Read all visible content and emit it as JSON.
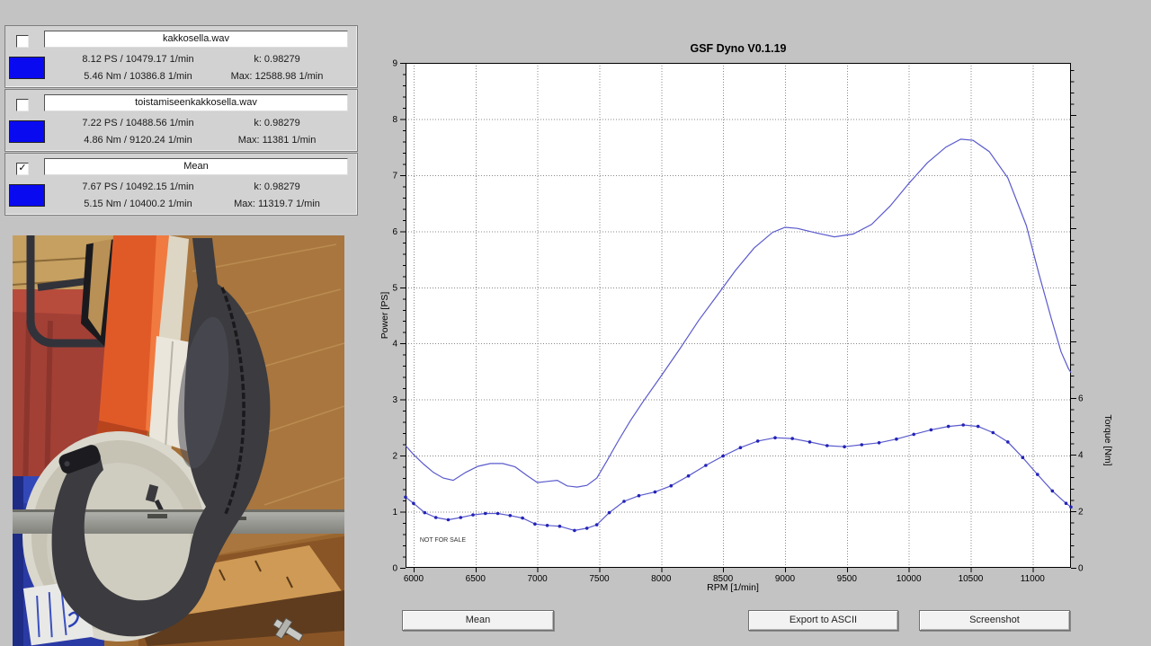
{
  "runs": [
    {
      "check": "",
      "checked": false,
      "color": "#0a0af0",
      "title": "kakkosella.wav",
      "line1_left": "8.12 PS / 10479.17 1/min",
      "line1_right": "k: 0.98279",
      "line2_left": "5.46 Nm / 10386.8 1/min",
      "line2_right": "Max: 12588.98 1/min"
    },
    {
      "check": "",
      "checked": false,
      "color": "#0a0af0",
      "title": "toistamiseenkakkosella.wav",
      "line1_left": "7.22 PS / 10488.56 1/min",
      "line1_right": "k: 0.98279",
      "line2_left": "4.86 Nm / 9120.24 1/min",
      "line2_right": "Max: 11381 1/min"
    },
    {
      "check": "✓",
      "checked": true,
      "color": "#0a0af0",
      "title": "Mean",
      "line1_left": "7.67 PS / 10492.15 1/min",
      "line1_right": "k: 0.98279",
      "line2_left": "5.15 Nm / 10400.2 1/min",
      "line2_right": "Max: 11319.7 1/min"
    }
  ],
  "buttons": [
    {
      "label": "Mean"
    },
    {
      "label": "Export to ASCII"
    },
    {
      "label": "Screenshot"
    }
  ],
  "chart_data": {
    "type": "line",
    "title": "GSF Dyno V0.1.19",
    "xlabel": "RPM [1/min]",
    "ylabel_left": "Power [PS]",
    "ylabel_right": "Torque [Nm]",
    "watermark": "NOT FOR SALE",
    "grid": true,
    "legend": "none",
    "xlim": [
      5935,
      11310
    ],
    "ylim_left": [
      0,
      9
    ],
    "ylim_right": [
      0,
      17.85
    ],
    "x_ticks": [
      6000,
      6500,
      7000,
      7500,
      8000,
      8500,
      9000,
      9500,
      10000,
      10500,
      11000
    ],
    "y_ticks_left": [
      0,
      1,
      2,
      3,
      4,
      5,
      6,
      7,
      8,
      9
    ],
    "y_ticks_right_labeled": [
      0,
      2,
      4,
      6
    ],
    "y_left_minor_step": 0.2,
    "y_right_minor_step": 0.4,
    "line_color": "#5a5acd",
    "marker_color": "#2323b8",
    "series": [
      {
        "name": "power_mean_PS",
        "axis": "left",
        "markers": false,
        "points": [
          [
            5935,
            2.18
          ],
          [
            6000,
            2.02
          ],
          [
            6080,
            1.85
          ],
          [
            6160,
            1.7
          ],
          [
            6240,
            1.6
          ],
          [
            6320,
            1.56
          ],
          [
            6420,
            1.7
          ],
          [
            6520,
            1.81
          ],
          [
            6620,
            1.86
          ],
          [
            6720,
            1.86
          ],
          [
            6820,
            1.8
          ],
          [
            6920,
            1.64
          ],
          [
            7000,
            1.52
          ],
          [
            7080,
            1.54
          ],
          [
            7160,
            1.56
          ],
          [
            7240,
            1.46
          ],
          [
            7320,
            1.44
          ],
          [
            7400,
            1.47
          ],
          [
            7480,
            1.6
          ],
          [
            7560,
            1.9
          ],
          [
            7650,
            2.25
          ],
          [
            7750,
            2.62
          ],
          [
            7850,
            2.95
          ],
          [
            8000,
            3.42
          ],
          [
            8150,
            3.9
          ],
          [
            8300,
            4.4
          ],
          [
            8450,
            4.85
          ],
          [
            8600,
            5.3
          ],
          [
            8750,
            5.7
          ],
          [
            8900,
            5.98
          ],
          [
            9000,
            6.07
          ],
          [
            9100,
            6.05
          ],
          [
            9250,
            5.97
          ],
          [
            9400,
            5.9
          ],
          [
            9550,
            5.95
          ],
          [
            9700,
            6.12
          ],
          [
            9850,
            6.45
          ],
          [
            10000,
            6.85
          ],
          [
            10150,
            7.22
          ],
          [
            10300,
            7.5
          ],
          [
            10420,
            7.64
          ],
          [
            10520,
            7.62
          ],
          [
            10650,
            7.42
          ],
          [
            10800,
            6.95
          ],
          [
            10950,
            6.1
          ],
          [
            11050,
            5.25
          ],
          [
            11150,
            4.45
          ],
          [
            11230,
            3.85
          ],
          [
            11290,
            3.55
          ],
          [
            11310,
            3.48
          ]
        ]
      },
      {
        "name": "torque_mean_Nm",
        "axis": "right",
        "markers": true,
        "points": [
          [
            5935,
            2.5
          ],
          [
            6000,
            2.28
          ],
          [
            6090,
            1.95
          ],
          [
            6180,
            1.78
          ],
          [
            6280,
            1.7
          ],
          [
            6380,
            1.78
          ],
          [
            6480,
            1.87
          ],
          [
            6580,
            1.92
          ],
          [
            6680,
            1.92
          ],
          [
            6780,
            1.85
          ],
          [
            6880,
            1.76
          ],
          [
            6980,
            1.55
          ],
          [
            7080,
            1.5
          ],
          [
            7180,
            1.47
          ],
          [
            7300,
            1.32
          ],
          [
            7400,
            1.4
          ],
          [
            7480,
            1.52
          ],
          [
            7580,
            1.95
          ],
          [
            7700,
            2.35
          ],
          [
            7820,
            2.55
          ],
          [
            7950,
            2.68
          ],
          [
            8080,
            2.9
          ],
          [
            8220,
            3.25
          ],
          [
            8360,
            3.62
          ],
          [
            8500,
            3.95
          ],
          [
            8640,
            4.25
          ],
          [
            8780,
            4.48
          ],
          [
            8920,
            4.6
          ],
          [
            9060,
            4.57
          ],
          [
            9200,
            4.45
          ],
          [
            9340,
            4.32
          ],
          [
            9480,
            4.28
          ],
          [
            9620,
            4.35
          ],
          [
            9760,
            4.42
          ],
          [
            9900,
            4.55
          ],
          [
            10040,
            4.72
          ],
          [
            10180,
            4.88
          ],
          [
            10320,
            5.0
          ],
          [
            10440,
            5.05
          ],
          [
            10560,
            5.0
          ],
          [
            10680,
            4.78
          ],
          [
            10800,
            4.45
          ],
          [
            10920,
            3.9
          ],
          [
            11040,
            3.3
          ],
          [
            11160,
            2.72
          ],
          [
            11270,
            2.28
          ],
          [
            11310,
            2.15
          ]
        ]
      }
    ]
  }
}
